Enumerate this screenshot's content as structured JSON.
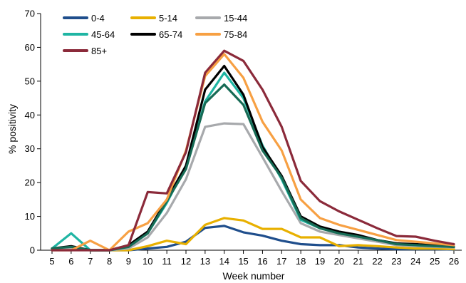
{
  "chart_data": {
    "type": "line",
    "xlabel": "Week number",
    "ylabel": "% positivity",
    "ylim": [
      0,
      70
    ],
    "yticks": [
      0,
      10,
      20,
      30,
      40,
      50,
      60,
      70
    ],
    "grid": false,
    "legend_position": "top-left",
    "x": [
      5,
      6,
      7,
      8,
      9,
      10,
      11,
      12,
      13,
      14,
      15,
      16,
      17,
      18,
      19,
      20,
      21,
      22,
      23,
      24,
      25,
      26
    ],
    "x_labels": [
      "5",
      "6",
      "7",
      "8",
      "9",
      "10",
      "11",
      "12",
      "13",
      "14",
      "15",
      "16",
      "17",
      "18",
      "19",
      "20",
      "21",
      "22",
      "23",
      "24",
      "25",
      "26"
    ],
    "series": [
      {
        "name": "0-4",
        "color": "#1f4e8c",
        "values": [
          0.3,
          0.5,
          0,
          0,
          0,
          0.5,
          1.0,
          2.5,
          6.6,
          7.2,
          5.3,
          4.3,
          2.8,
          1.8,
          1.5,
          1.5,
          0.8,
          0.5,
          0.3,
          0.3,
          0.3,
          0.2
        ]
      },
      {
        "name": "5-14",
        "color": "#e8b000",
        "values": [
          0.3,
          0.3,
          0,
          0,
          0,
          1.2,
          2.8,
          1.8,
          7.5,
          9.5,
          8.8,
          6.3,
          6.3,
          3.8,
          3.8,
          1.2,
          1.5,
          1.2,
          0.8,
          0.5,
          0.5,
          0.3
        ]
      },
      {
        "name": "15-44",
        "color": "#a7a9ac",
        "values": [
          0.5,
          0.5,
          0,
          0,
          0.5,
          3.8,
          11.0,
          21.0,
          36.5,
          37.5,
          37.3,
          27.5,
          17.5,
          8.0,
          5.5,
          4.5,
          3.5,
          2.5,
          1.5,
          1.2,
          1.0,
          0.8
        ]
      },
      {
        "name": "45-64",
        "color": "#1fb5a3",
        "values": [
          0.5,
          5.0,
          0,
          0,
          1.0,
          5.0,
          14.0,
          25.0,
          44.0,
          52.5,
          45.0,
          31.0,
          21.0,
          9.0,
          6.5,
          5.0,
          4.0,
          3.0,
          2.0,
          1.5,
          1.2,
          1.0
        ]
      },
      {
        "name": "65-74",
        "color": "#000000",
        "values": [
          0.5,
          1.2,
          0,
          0,
          1.5,
          5.5,
          15.0,
          25.0,
          47.5,
          54.5,
          46.0,
          30.5,
          22.0,
          10.0,
          7.0,
          5.5,
          4.5,
          3.0,
          2.0,
          1.8,
          1.5,
          1.0
        ]
      },
      {
        "name": "",
        "color": "#176b55",
        "values": [
          0.5,
          1.0,
          0,
          0,
          1.0,
          5.0,
          14.5,
          24.0,
          43.5,
          49.0,
          43.0,
          29.5,
          21.5,
          9.5,
          6.5,
          5.0,
          4.0,
          3.0,
          1.8,
          1.5,
          1.2,
          1.0
        ]
      },
      {
        "name": "75-84",
        "color": "#f7a043",
        "values": [
          0,
          0,
          2.8,
          0,
          5.5,
          8.0,
          15.0,
          29.5,
          51.5,
          58.0,
          51.0,
          38.0,
          29.5,
          15.0,
          9.5,
          7.5,
          6.0,
          4.5,
          3.0,
          2.5,
          2.0,
          1.5
        ]
      },
      {
        "name": "85+",
        "color": "#8b2a3a",
        "values": [
          0,
          0,
          0,
          0,
          1.5,
          17.2,
          16.8,
          29.0,
          52.5,
          59.0,
          56.0,
          47.5,
          36.5,
          20.5,
          14.5,
          11.5,
          9.0,
          6.5,
          4.2,
          4.0,
          2.8,
          1.8
        ]
      }
    ],
    "legend": [
      {
        "label": "0-4",
        "color": "#1f4e8c"
      },
      {
        "label": "5-14",
        "color": "#e8b000"
      },
      {
        "label": "15-44",
        "color": "#a7a9ac"
      },
      {
        "label": "45-64",
        "color": "#1fb5a3"
      },
      {
        "label": "65-74",
        "color": "#000000"
      },
      {
        "label": "75-84",
        "color": "#f7a043"
      },
      {
        "label": "85+",
        "color": "#8b2a3a"
      }
    ]
  }
}
